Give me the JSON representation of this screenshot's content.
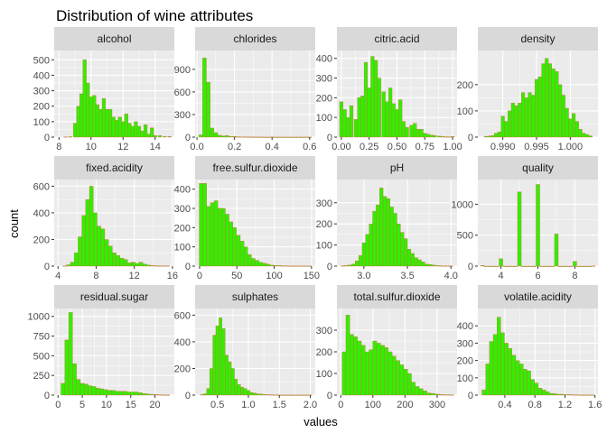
{
  "chart_data": {
    "type": "bar",
    "title": "Distribution of wine attributes",
    "xlabel": "values",
    "ylabel": "count",
    "colors": {
      "fill": "#33ee00",
      "outline": "#e0604a",
      "panel": "#ebebeb",
      "strip": "#d9d9d9",
      "grid": "#ffffff"
    },
    "grid": true,
    "panels": [
      {
        "name": "alcohol",
        "xlim": [
          7.7,
          15.2
        ],
        "ylim": [
          0,
          560
        ],
        "xticks": [
          8,
          10,
          12,
          14
        ],
        "xtick_labels": [
          "8",
          "10",
          "12",
          "14"
        ],
        "yticks": [
          0,
          100,
          200,
          300,
          400,
          500
        ],
        "ytick_labels": [
          "0",
          "100",
          "200",
          "300",
          "400",
          "500"
        ],
        "x": [
          8.4,
          8.7,
          9.0,
          9.2,
          9.4,
          9.6,
          9.8,
          10.0,
          10.2,
          10.4,
          10.6,
          10.8,
          11.0,
          11.2,
          11.4,
          11.6,
          11.8,
          12.0,
          12.2,
          12.4,
          12.6,
          12.8,
          13.0,
          13.2,
          13.4,
          13.6,
          13.8,
          14.0,
          14.3,
          14.6,
          14.9
        ],
        "values": [
          2,
          3,
          90,
          200,
          280,
          500,
          350,
          260,
          270,
          210,
          180,
          250,
          180,
          180,
          130,
          110,
          130,
          100,
          150,
          90,
          70,
          100,
          70,
          40,
          80,
          20,
          60,
          10,
          10,
          5,
          5
        ]
      },
      {
        "name": "chlorides",
        "xlim": [
          -0.01,
          0.63
        ],
        "ylim": [
          0,
          1150
        ],
        "xticks": [
          0.0,
          0.2,
          0.4,
          0.6
        ],
        "xtick_labels": [
          "0.0",
          "0.2",
          "0.4",
          "0.6"
        ],
        "yticks": [
          0,
          300,
          600,
          900
        ],
        "ytick_labels": [
          "0",
          "300",
          "600",
          "900"
        ],
        "x": [
          0.02,
          0.04,
          0.06,
          0.08,
          0.1,
          0.12,
          0.14,
          0.16,
          0.18,
          0.2,
          0.22,
          0.24,
          0.26,
          0.28,
          0.3,
          0.32,
          0.34,
          0.36,
          0.38,
          0.4,
          0.42,
          0.44,
          0.46,
          0.48,
          0.5,
          0.52,
          0.54,
          0.56,
          0.58,
          0.6
        ],
        "values": [
          30,
          1050,
          730,
          120,
          60,
          25,
          15,
          20,
          10,
          8,
          5,
          4,
          3,
          3,
          2,
          2,
          2,
          1,
          1,
          2,
          1,
          1,
          1,
          1,
          1,
          1,
          1,
          1,
          1,
          1
        ]
      },
      {
        "name": "citric.acid",
        "xlim": [
          -0.04,
          1.04
        ],
        "ylim": [
          0,
          440
        ],
        "xticks": [
          0.0,
          0.25,
          0.5,
          0.75,
          1.0
        ],
        "xtick_labels": [
          "0.00",
          "0.25",
          "0.50",
          "0.75",
          "1.00"
        ],
        "yticks": [
          0,
          100,
          200,
          300,
          400
        ],
        "ytick_labels": [
          "0",
          "100",
          "200",
          "300",
          "400"
        ],
        "x": [
          0.0,
          0.03,
          0.06,
          0.09,
          0.13,
          0.16,
          0.19,
          0.22,
          0.25,
          0.28,
          0.31,
          0.34,
          0.38,
          0.41,
          0.44,
          0.47,
          0.5,
          0.53,
          0.56,
          0.59,
          0.63,
          0.66,
          0.69,
          0.72,
          0.75,
          0.78,
          0.81,
          0.84,
          0.88,
          0.91,
          0.94,
          0.97,
          1.0
        ],
        "values": [
          180,
          140,
          100,
          160,
          90,
          200,
          210,
          380,
          250,
          410,
          390,
          300,
          230,
          180,
          250,
          170,
          140,
          190,
          80,
          50,
          60,
          70,
          40,
          40,
          20,
          15,
          10,
          8,
          5,
          3,
          2,
          2,
          3
        ]
      },
      {
        "name": "density",
        "xlim": [
          0.9863,
          1.0041
        ],
        "ylim": [
          0,
          330
        ],
        "xticks": [
          0.99,
          0.995,
          1.0
        ],
        "xtick_labels": [
          "0.990",
          "0.995",
          "1.000"
        ],
        "yticks": [
          0,
          100,
          200
        ],
        "ytick_labels": [
          "0",
          "100",
          "200"
        ],
        "x": [
          0.9875,
          0.988,
          0.9885,
          0.989,
          0.9895,
          0.99,
          0.9905,
          0.991,
          0.9915,
          0.992,
          0.9925,
          0.993,
          0.9935,
          0.994,
          0.9945,
          0.995,
          0.9955,
          0.996,
          0.9965,
          0.997,
          0.9975,
          0.998,
          0.9985,
          0.999,
          0.9995,
          1.0,
          1.0005,
          1.001,
          1.0015,
          1.002,
          1.0025,
          1.003
        ],
        "values": [
          3,
          4,
          6,
          15,
          20,
          80,
          60,
          100,
          130,
          120,
          130,
          170,
          150,
          170,
          160,
          220,
          230,
          280,
          300,
          280,
          260,
          250,
          200,
          160,
          110,
          70,
          90,
          60,
          30,
          15,
          10,
          5
        ]
      },
      {
        "name": "fixed.acidity",
        "xlim": [
          3.6,
          16.2
        ],
        "ylim": [
          0,
          650
        ],
        "xticks": [
          4,
          8,
          12,
          16
        ],
        "xtick_labels": [
          "4",
          "8",
          "12",
          "16"
        ],
        "yticks": [
          0,
          200,
          400,
          600
        ],
        "ytick_labels": [
          "0",
          "200",
          "400",
          "600"
        ],
        "x": [
          4.7,
          5.1,
          5.5,
          5.9,
          6.3,
          6.7,
          7.1,
          7.5,
          7.9,
          8.3,
          8.7,
          9.1,
          9.5,
          9.9,
          10.3,
          10.7,
          11.1,
          11.5,
          11.9,
          12.3,
          12.7,
          13.1,
          13.5,
          13.9,
          14.3,
          14.7,
          15.1,
          15.5
        ],
        "values": [
          2,
          10,
          30,
          100,
          220,
          380,
          500,
          600,
          400,
          300,
          280,
          200,
          150,
          100,
          80,
          60,
          50,
          25,
          30,
          20,
          30,
          15,
          8,
          5,
          3,
          3,
          2,
          2
        ]
      },
      {
        "name": "free.sulfur.dioxide",
        "xlim": [
          -6,
          155
        ],
        "ylim": [
          0,
          450
        ],
        "xticks": [
          0,
          50,
          100,
          150
        ],
        "xtick_labels": [
          "0",
          "50",
          "100",
          "150"
        ],
        "yticks": [
          0,
          100,
          200,
          300,
          400
        ],
        "ytick_labels": [
          "0",
          "100",
          "200",
          "300",
          "400"
        ],
        "x": [
          2,
          7,
          12,
          17,
          22,
          27,
          32,
          37,
          42,
          47,
          52,
          57,
          62,
          67,
          72,
          77,
          82,
          87,
          92,
          97,
          102,
          107,
          112,
          117,
          122,
          127,
          132,
          137,
          142,
          147
        ],
        "values": [
          430,
          430,
          310,
          330,
          340,
          300,
          300,
          270,
          230,
          200,
          160,
          130,
          100,
          60,
          40,
          30,
          20,
          15,
          10,
          5,
          4,
          3,
          2,
          2,
          1,
          1,
          1,
          1,
          1,
          1
        ]
      },
      {
        "name": "pH",
        "xlim": [
          2.69,
          4.07
        ],
        "ylim": [
          0,
          410
        ],
        "xticks": [
          3.0,
          3.5,
          4.0
        ],
        "xtick_labels": [
          "3.0",
          "3.5",
          "4.0"
        ],
        "yticks": [
          0,
          100,
          200,
          300
        ],
        "ytick_labels": [
          "0",
          "100",
          "200",
          "300"
        ],
        "x": [
          2.76,
          2.8,
          2.84,
          2.88,
          2.92,
          2.96,
          3.0,
          3.04,
          3.08,
          3.12,
          3.16,
          3.2,
          3.24,
          3.28,
          3.32,
          3.36,
          3.4,
          3.44,
          3.48,
          3.52,
          3.56,
          3.6,
          3.64,
          3.68,
          3.72,
          3.76,
          3.8,
          3.84,
          3.88,
          3.92,
          3.96,
          4.0
        ],
        "values": [
          2,
          3,
          5,
          10,
          25,
          50,
          110,
          150,
          200,
          260,
          290,
          370,
          330,
          320,
          280,
          250,
          200,
          160,
          130,
          80,
          60,
          40,
          30,
          20,
          10,
          8,
          5,
          3,
          2,
          1,
          1,
          1
        ]
      },
      {
        "name": "quality",
        "xlim": [
          2.75,
          9.25
        ],
        "ylim": [
          0,
          1400
        ],
        "xticks": [
          4,
          6,
          8
        ],
        "xtick_labels": [
          "4",
          "6",
          "8"
        ],
        "yticks": [
          0,
          500,
          1000
        ],
        "ytick_labels": [
          "0",
          "500",
          "1000"
        ],
        "x": [
          3.0,
          3.2,
          3.4,
          3.6,
          3.8,
          4.0,
          4.2,
          4.4,
          4.6,
          4.8,
          5.0,
          5.2,
          5.4,
          5.6,
          5.8,
          6.0,
          6.2,
          6.4,
          6.6,
          6.8,
          7.0,
          7.2,
          7.4,
          7.6,
          7.8,
          8.0,
          8.2,
          8.4,
          8.6,
          8.8,
          9.0
        ],
        "values": [
          10,
          0,
          0,
          0,
          0,
          120,
          0,
          0,
          0,
          0,
          1200,
          0,
          0,
          0,
          0,
          1320,
          0,
          0,
          0,
          0,
          520,
          0,
          0,
          0,
          0,
          75,
          0,
          0,
          0,
          0,
          3
        ]
      },
      {
        "name": "residual.sugar",
        "xlim": [
          -0.8,
          24
        ],
        "ylim": [
          0,
          1100
        ],
        "xticks": [
          0,
          5,
          10,
          15,
          20
        ],
        "xtick_labels": [
          "0",
          "5",
          "10",
          "15",
          "20"
        ],
        "yticks": [
          0,
          250,
          500,
          750,
          1000
        ],
        "ytick_labels": [
          "0",
          "250",
          "500",
          "750",
          "1000"
        ],
        "x": [
          1.0,
          1.8,
          2.6,
          3.4,
          4.2,
          5.0,
          5.8,
          6.6,
          7.4,
          8.2,
          9.0,
          9.8,
          10.6,
          11.4,
          12.2,
          13.0,
          13.8,
          14.6,
          15.4,
          16.2,
          17.0,
          17.8,
          18.6,
          19.4,
          20.2,
          21.0,
          21.8,
          22.6
        ],
        "values": [
          150,
          700,
          1050,
          400,
          200,
          150,
          140,
          120,
          110,
          90,
          80,
          70,
          60,
          60,
          50,
          50,
          50,
          40,
          40,
          40,
          30,
          20,
          15,
          10,
          8,
          5,
          3,
          2
        ]
      },
      {
        "name": "sulphates",
        "xlim": [
          0.14,
          2.08
        ],
        "ylim": [
          0,
          650
        ],
        "xticks": [
          0.5,
          1.0,
          1.5,
          2.0
        ],
        "xtick_labels": [
          "0.5",
          "1.0",
          "1.5",
          "2.0"
        ],
        "yticks": [
          0,
          200,
          400,
          600
        ],
        "ytick_labels": [
          "0",
          "200",
          "400",
          "600"
        ],
        "x": [
          0.25,
          0.3,
          0.35,
          0.4,
          0.45,
          0.5,
          0.55,
          0.6,
          0.65,
          0.7,
          0.75,
          0.8,
          0.85,
          0.9,
          0.95,
          1.0,
          1.05,
          1.1,
          1.15,
          1.2,
          1.25,
          1.3,
          1.35,
          1.4,
          1.45,
          1.5,
          1.55,
          1.6,
          1.65,
          1.7,
          1.75,
          1.8,
          1.85,
          1.9,
          1.95,
          2.0
        ],
        "values": [
          5,
          10,
          50,
          200,
          450,
          520,
          580,
          500,
          300,
          250,
          200,
          120,
          80,
          60,
          50,
          35,
          20,
          15,
          10,
          8,
          5,
          5,
          3,
          3,
          2,
          2,
          1,
          1,
          1,
          1,
          1,
          1,
          1,
          1,
          1,
          2
        ]
      },
      {
        "name": "total.sulfur.dioxide",
        "xlim": [
          -12,
          362
        ],
        "ylim": [
          0,
          400
        ],
        "xticks": [
          0,
          100,
          200,
          300
        ],
        "xtick_labels": [
          "0",
          "100",
          "200",
          "300"
        ],
        "yticks": [
          0,
          100,
          200,
          300
        ],
        "ytick_labels": [
          "0",
          "100",
          "200",
          "300"
        ],
        "x": [
          10,
          22,
          34,
          46,
          58,
          70,
          82,
          94,
          106,
          118,
          130,
          142,
          154,
          166,
          178,
          190,
          202,
          214,
          226,
          238,
          250,
          262,
          274,
          286,
          298,
          310,
          322,
          334,
          346
        ],
        "values": [
          200,
          370,
          280,
          270,
          250,
          230,
          200,
          210,
          250,
          240,
          230,
          220,
          200,
          180,
          160,
          140,
          120,
          100,
          60,
          40,
          30,
          20,
          10,
          8,
          5,
          3,
          2,
          2,
          1
        ]
      },
      {
        "name": "volatile.acidity",
        "xlim": [
          0.04,
          1.64
        ],
        "ylim": [
          0,
          500
        ],
        "xticks": [
          0.4,
          0.8,
          1.2,
          1.6
        ],
        "xtick_labels": [
          "0.4",
          "0.8",
          "1.2",
          "1.6"
        ],
        "yticks": [
          0,
          100,
          200,
          300,
          400
        ],
        "ytick_labels": [
          "0",
          "100",
          "200",
          "300",
          "400"
        ],
        "x": [
          0.12,
          0.17,
          0.22,
          0.27,
          0.32,
          0.37,
          0.42,
          0.47,
          0.52,
          0.57,
          0.62,
          0.67,
          0.72,
          0.77,
          0.82,
          0.87,
          0.92,
          0.97,
          1.02,
          1.07,
          1.12,
          1.17,
          1.22,
          1.27,
          1.32,
          1.37,
          1.42,
          1.47,
          1.52,
          1.57
        ],
        "values": [
          30,
          180,
          310,
          350,
          450,
          360,
          300,
          270,
          230,
          200,
          180,
          150,
          140,
          90,
          70,
          40,
          30,
          20,
          10,
          8,
          5,
          5,
          3,
          3,
          2,
          2,
          1,
          1,
          1,
          1
        ]
      }
    ]
  }
}
